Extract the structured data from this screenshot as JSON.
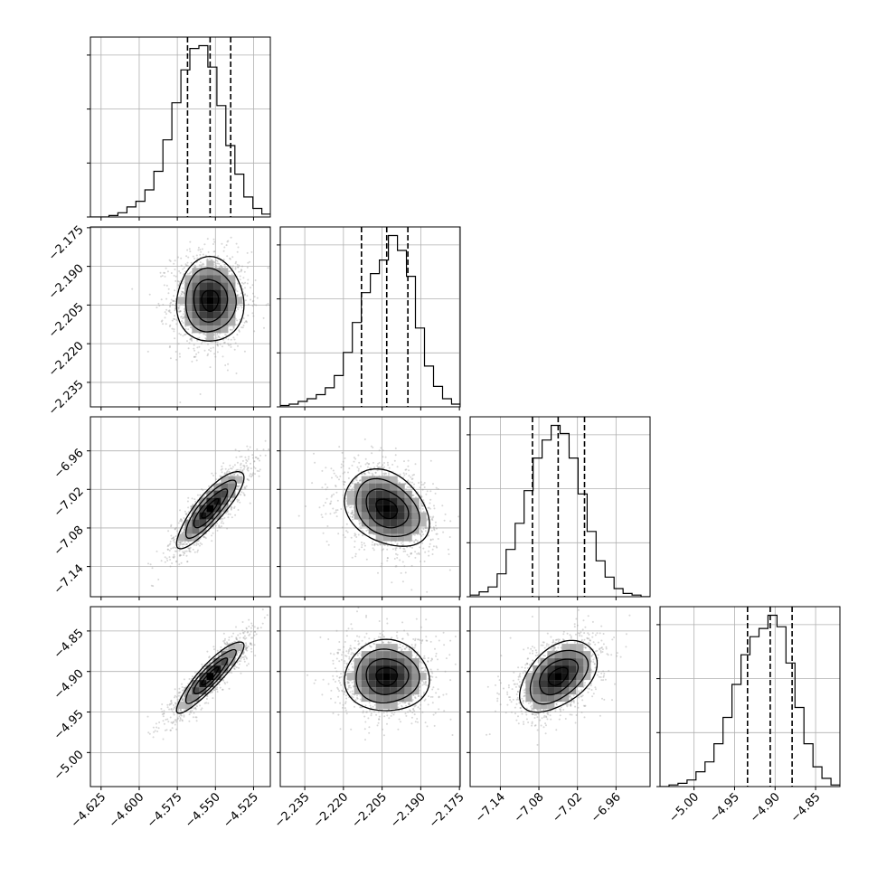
{
  "chart_data": {
    "type": "corner",
    "title": "",
    "grid": true,
    "parameters": [
      {
        "ticks": [
          -4.625,
          -4.6,
          -4.575,
          -4.55,
          -4.525
        ],
        "tick_labels": [
          "−4.625",
          "−4.600",
          "−4.575",
          "−4.550",
          "−4.525"
        ],
        "range": [
          -4.632,
          -4.514
        ],
        "quantiles": [
          -4.5683,
          -4.5535,
          -4.54
        ],
        "hist_centers": [
          -4.6287,
          -4.6228,
          -4.6169,
          -4.611,
          -4.6051,
          -4.5992,
          -4.5933,
          -4.5874,
          -4.5815,
          -4.5756,
          -4.5697,
          -4.5638,
          -4.5579,
          -4.552,
          -4.5461,
          -4.5402,
          -4.5343,
          -4.5284,
          -4.5225,
          -4.5166
        ],
        "hist_counts": [
          0,
          0,
          1,
          3,
          7,
          11,
          19,
          32,
          54,
          80,
          103,
          118,
          120,
          105,
          78,
          50,
          30,
          14,
          6,
          2
        ]
      },
      {
        "ticks": [
          -2.235,
          -2.22,
          -2.205,
          -2.19,
          -2.175
        ],
        "tick_labels": [
          "−2.235",
          "−2.220",
          "−2.205",
          "−2.190",
          "−2.175"
        ],
        "range": [
          -2.2445,
          -2.1747
        ],
        "quantiles": [
          -2.213,
          -2.2032,
          -2.195
        ],
        "hist_centers": [
          -2.2428,
          -2.2393,
          -2.2358,
          -2.2323,
          -2.2288,
          -2.2253,
          -2.2218,
          -2.2183,
          -2.2148,
          -2.2113,
          -2.2078,
          -2.2043,
          -2.2008,
          -2.1973,
          -2.1938,
          -2.1903,
          -2.1868,
          -2.1833,
          -2.1798,
          -2.1763
        ],
        "hist_counts": [
          1,
          2,
          4,
          6,
          9,
          14,
          23,
          40,
          62,
          84,
          98,
          108,
          126,
          115,
          96,
          58,
          30,
          15,
          6,
          2
        ]
      },
      {
        "ticks": [
          -7.14,
          -7.08,
          -7.02,
          -6.96
        ],
        "tick_labels": [
          "−7.14",
          "−7.08",
          "−7.02",
          "−6.96"
        ],
        "range": [
          -7.187,
          -6.907
        ],
        "quantiles": [
          -7.09,
          -7.05,
          -7.009
        ],
        "hist_centers": [
          -7.18,
          -7.166,
          -7.152,
          -7.138,
          -7.124,
          -7.11,
          -7.096,
          -7.082,
          -7.068,
          -7.054,
          -7.04,
          -7.026,
          -7.012,
          -6.998,
          -6.984,
          -6.97,
          -6.956,
          -6.942,
          -6.928,
          -6.914
        ],
        "hist_counts": [
          1,
          3,
          6,
          14,
          29,
          45,
          65,
          85,
          96,
          105,
          100,
          85,
          63,
          40,
          22,
          12,
          5,
          2,
          1,
          0
        ]
      },
      {
        "ticks": [
          -5.0,
          -4.95,
          -4.9,
          -4.85
        ],
        "tick_labels": [
          "−5.00",
          "−4.95",
          "−4.90",
          "−4.85"
        ],
        "range": [
          -5.042,
          -4.82
        ],
        "quantiles": [
          -4.934,
          -4.906,
          -4.879
        ],
        "hist_centers": [
          -5.0364,
          -5.0253,
          -5.0142,
          -5.0031,
          -4.992,
          -4.9809,
          -4.9698,
          -4.9587,
          -4.9476,
          -4.9365,
          -4.9254,
          -4.9143,
          -4.9032,
          -4.8921,
          -4.881,
          -4.8699,
          -4.8588,
          -4.8477,
          -4.8366,
          -4.8255
        ],
        "hist_counts": [
          0,
          1,
          2,
          4,
          9,
          15,
          26,
          42,
          62,
          80,
          91,
          96,
          104,
          97,
          75,
          48,
          26,
          12,
          5,
          1
        ]
      }
    ],
    "pairs": [
      {
        "row": 1,
        "col": 0,
        "center": [
          -4.5535,
          -2.2032
        ],
        "sigma": [
          0.011,
          0.0082
        ],
        "rho": 0.0
      },
      {
        "row": 2,
        "col": 0,
        "center": [
          -4.5535,
          -7.05
        ],
        "sigma": [
          0.011,
          0.03
        ],
        "rho": 0.85
      },
      {
        "row": 2,
        "col": 1,
        "center": [
          -2.2032,
          -7.05
        ],
        "sigma": [
          0.0082,
          0.03
        ],
        "rho": -0.3
      },
      {
        "row": 3,
        "col": 0,
        "center": [
          -4.5535,
          -4.906
        ],
        "sigma": [
          0.011,
          0.022
        ],
        "rho": 0.9
      },
      {
        "row": 3,
        "col": 1,
        "center": [
          -2.2032,
          -4.906
        ],
        "sigma": [
          0.0082,
          0.022
        ],
        "rho": 0.0
      },
      {
        "row": 3,
        "col": 2,
        "center": [
          -7.05,
          -4.906
        ],
        "sigma": [
          0.03,
          0.022
        ],
        "rho": 0.45
      }
    ]
  }
}
